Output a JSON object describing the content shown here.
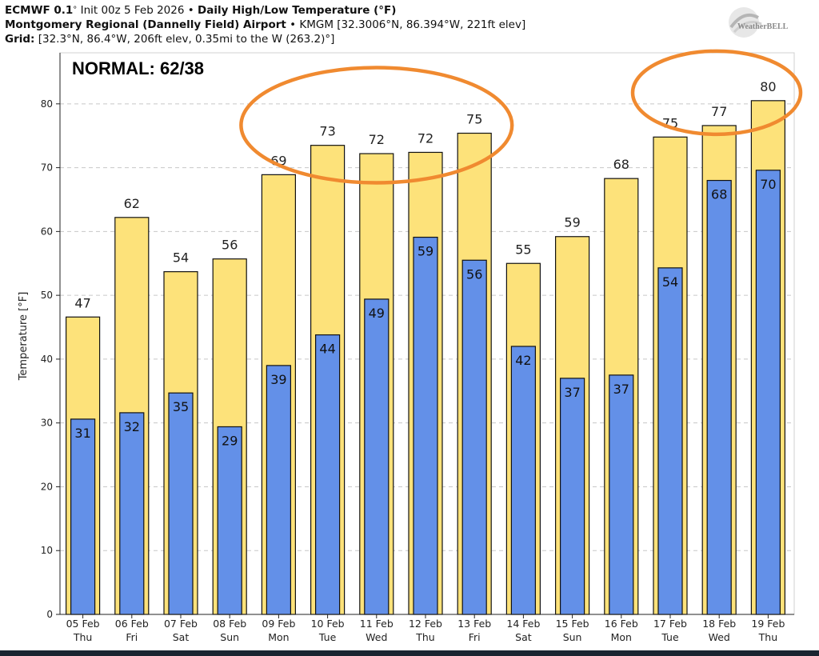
{
  "header": {
    "line1": {
      "model": "ECMWF 0.1",
      "init_prefix": "Init 00z 5 Feb 2026",
      "bullet": "•",
      "product": "Daily High/Low Temperature (°F)"
    },
    "line2": {
      "station": "Montgomery Regional (Dannelly Field) Airport",
      "bullet": "•",
      "details": "KMGM [32.3006°N, 86.394°W, 221ft elev]"
    },
    "line3": {
      "label": "Grid:",
      "details": "[32.3°N, 86.4°W, 206ft elev, 0.35mi to the W (263.2)°]"
    },
    "degree": "°"
  },
  "logo": {
    "text": "WeatherBELL"
  },
  "colors": {
    "high_bar": "#fde27a",
    "low_bar": "#6390e8",
    "circle": "#f08a30",
    "grid": "#c8c8c8",
    "plot_bg": "#ffffff",
    "frame": "#d0d0d0"
  },
  "chart_data": {
    "type": "bar",
    "annotation": "NORMAL: 62/38",
    "ylabel": "Temperature [°F]",
    "ylim": [
      0,
      88
    ],
    "yticks": [
      0,
      10,
      20,
      30,
      40,
      50,
      60,
      70,
      80
    ],
    "grid": true,
    "categories": [
      {
        "date": "05 Feb",
        "day": "Thu"
      },
      {
        "date": "06 Feb",
        "day": "Fri"
      },
      {
        "date": "07 Feb",
        "day": "Sat"
      },
      {
        "date": "08 Feb",
        "day": "Sun"
      },
      {
        "date": "09 Feb",
        "day": "Mon"
      },
      {
        "date": "10 Feb",
        "day": "Tue"
      },
      {
        "date": "11 Feb",
        "day": "Wed"
      },
      {
        "date": "12 Feb",
        "day": "Thu"
      },
      {
        "date": "13 Feb",
        "day": "Fri"
      },
      {
        "date": "14 Feb",
        "day": "Sat"
      },
      {
        "date": "15 Feb",
        "day": "Sun"
      },
      {
        "date": "16 Feb",
        "day": "Mon"
      },
      {
        "date": "17 Feb",
        "day": "Tue"
      },
      {
        "date": "18 Feb",
        "day": "Wed"
      },
      {
        "date": "19 Feb",
        "day": "Thu"
      }
    ],
    "series": [
      {
        "key": "high",
        "values": [
          46.6,
          62.2,
          53.7,
          55.7,
          68.9,
          73.5,
          72.2,
          72.4,
          75.4,
          55.0,
          59.2,
          68.3,
          74.8,
          76.6,
          80.5
        ],
        "labels": [
          "47",
          "62",
          "54",
          "56",
          "69",
          "73",
          "72",
          "72",
          "75",
          "55",
          "59",
          "68",
          "75",
          "77",
          "80"
        ]
      },
      {
        "key": "low",
        "values": [
          30.6,
          31.6,
          34.7,
          29.4,
          39.0,
          43.8,
          49.4,
          59.1,
          55.5,
          42.0,
          37.0,
          37.5,
          54.3,
          68.0,
          69.6
        ],
        "labels": [
          "31",
          "32",
          "35",
          "29",
          "39",
          "44",
          "49",
          "59",
          "56",
          "42",
          "37",
          "37",
          "54",
          "68",
          "70"
        ]
      }
    ],
    "highlight_groups": [
      {
        "from": "09 Feb",
        "to": "13 Feb"
      },
      {
        "from": "17 Feb",
        "to": "19 Feb"
      }
    ]
  }
}
